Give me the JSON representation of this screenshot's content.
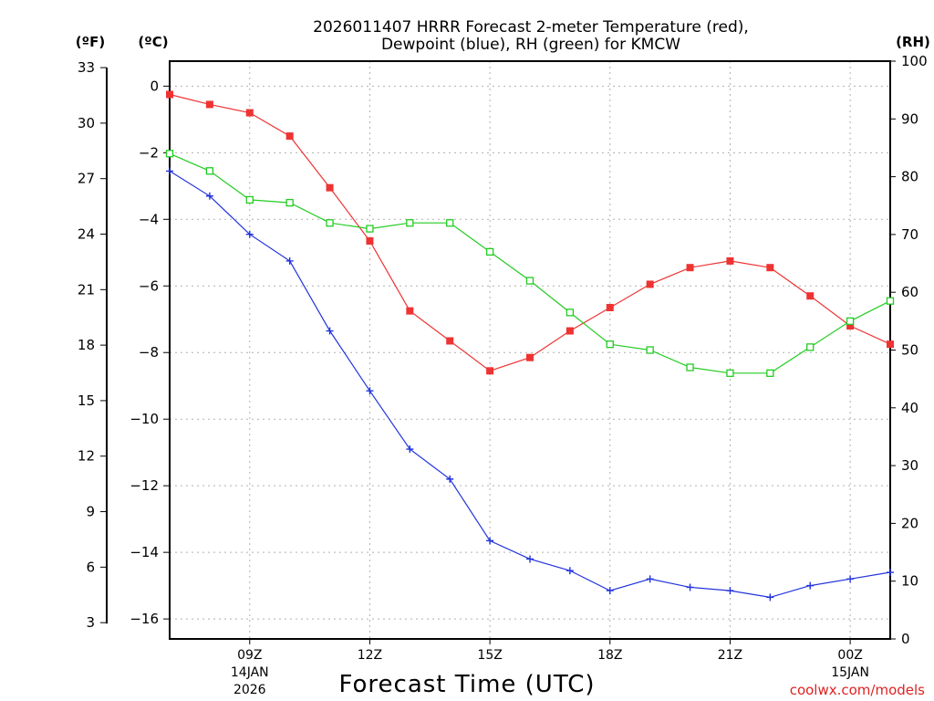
{
  "chart_data": {
    "type": "line",
    "title_line1": "2026011407 HRRR Forecast 2-meter Temperature (red),",
    "title_line2": "Dewpoint (blue), RH (green) for KMCW",
    "xlabel": "Forecast Time (UTC)",
    "credit": "coolwx.com/models",
    "left_unit_f": "(ºF)",
    "left_unit_c": "(ºC)",
    "right_unit": "(RH)",
    "x": [
      7,
      8,
      9,
      10,
      11,
      12,
      13,
      14,
      15,
      16,
      17,
      18,
      19,
      20,
      21,
      22,
      23,
      24,
      25
    ],
    "xlim": [
      7,
      25
    ],
    "x_ticks": [
      {
        "x": 9,
        "label": "09Z",
        "sub1": "14JAN",
        "sub2": "2026"
      },
      {
        "x": 12,
        "label": "12Z",
        "sub1": "",
        "sub2": ""
      },
      {
        "x": 15,
        "label": "15Z",
        "sub1": "",
        "sub2": ""
      },
      {
        "x": 18,
        "label": "18Z",
        "sub1": "",
        "sub2": ""
      },
      {
        "x": 21,
        "label": "21Z",
        "sub1": "",
        "sub2": ""
      },
      {
        "x": 24,
        "label": "00Z",
        "sub1": "15JAN",
        "sub2": ""
      }
    ],
    "ylim_c": [
      -16.6,
      0.75
    ],
    "ylim_rh": [
      0,
      100
    ],
    "yticks_c": [
      "0",
      "−2",
      "−4",
      "−6",
      "−8",
      "−10",
      "−12",
      "−14",
      "−16"
    ],
    "yticks_f": [
      "33",
      "30",
      "27",
      "24",
      "21",
      "18",
      "15",
      "12",
      "9",
      "6",
      "3"
    ],
    "yticks_rh": [
      "100",
      "90",
      "80",
      "70",
      "60",
      "50",
      "40",
      "30",
      "20",
      "10",
      "0"
    ],
    "grid": true,
    "series": [
      {
        "name": "Temperature",
        "units": "°C",
        "color": "#ee3333",
        "marker": "filled-square",
        "values": [
          -0.25,
          -0.55,
          -0.8,
          -1.5,
          -3.05,
          -4.65,
          -6.75,
          -7.65,
          -8.55,
          -8.15,
          -7.35,
          -6.65,
          -5.95,
          -5.45,
          -5.25,
          -5.45,
          -6.3,
          -7.2,
          -7.75
        ]
      },
      {
        "name": "Dewpoint",
        "units": "°C",
        "color": "#2233dd",
        "marker": "plus",
        "values": [
          -2.55,
          -3.3,
          -4.45,
          -5.25,
          -7.35,
          -9.15,
          -10.9,
          -11.8,
          -13.65,
          -14.2,
          -14.55,
          -15.15,
          -14.8,
          -15.05,
          -15.15,
          -15.35,
          -15.0,
          -14.8,
          -14.6
        ]
      },
      {
        "name": "RH",
        "units": "%",
        "color": "#22cc22",
        "marker": "open-square",
        "values": [
          84,
          81,
          76,
          75.5,
          72,
          71,
          72,
          72,
          67,
          62,
          56.5,
          51,
          50,
          47,
          46,
          46,
          50.5,
          55,
          58.5
        ]
      }
    ]
  }
}
